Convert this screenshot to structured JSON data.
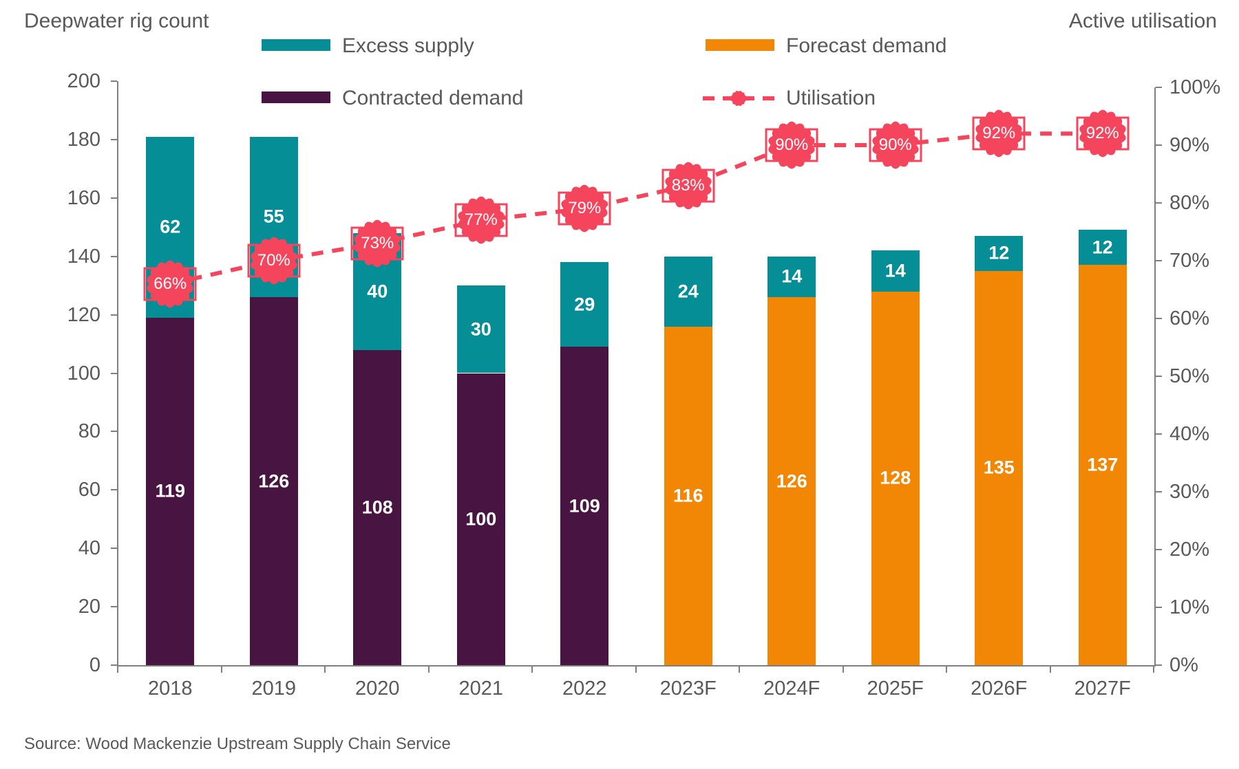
{
  "header": {
    "left_title": "Deepwater rig count",
    "right_title": "Active utilisation"
  },
  "footer": {
    "source": "Source: Wood Mackenzie Upstream Supply Chain Service"
  },
  "colors": {
    "contracted": "#481441",
    "forecast": "#F28705",
    "excess": "#058E96",
    "utilisation": "#F5455C",
    "axis": "#7f7f7f",
    "text": "#595959"
  },
  "chart_data": {
    "type": "bar",
    "subtype": "stacked-bars-with-line",
    "categories": [
      "2018",
      "2019",
      "2020",
      "2021",
      "2022",
      "2023F",
      "2024F",
      "2025F",
      "2026F",
      "2027F"
    ],
    "series": [
      {
        "name": "Contracted demand",
        "type": "bar",
        "stack": "bottom",
        "color": "#481441",
        "values": [
          119,
          126,
          108,
          100,
          109,
          null,
          null,
          null,
          null,
          null
        ]
      },
      {
        "name": "Forecast demand",
        "type": "bar",
        "stack": "bottom",
        "color": "#F28705",
        "values": [
          null,
          null,
          null,
          null,
          null,
          116,
          126,
          128,
          135,
          137
        ]
      },
      {
        "name": "Excess supply",
        "type": "bar",
        "stack": "top",
        "color": "#058E96",
        "values": [
          62,
          55,
          40,
          30,
          29,
          24,
          14,
          14,
          12,
          12
        ]
      },
      {
        "name": "Utilisation",
        "type": "line",
        "axis": "right",
        "color": "#F5455C",
        "style": "dashed",
        "marker": "seal-badge",
        "unit": "%",
        "values": [
          66,
          70,
          73,
          77,
          79,
          83,
          90,
          90,
          92,
          92
        ]
      }
    ],
    "left_axis": {
      "title": "Deepwater rig count",
      "min": 0,
      "max": 200,
      "step": 20
    },
    "right_axis": {
      "title": "Active utilisation",
      "min": 0,
      "max": 100,
      "step": 10,
      "format": "percent"
    },
    "grid": false,
    "legend_position": "top",
    "source": "Source: Wood Mackenzie Upstream Supply Chain Service"
  }
}
